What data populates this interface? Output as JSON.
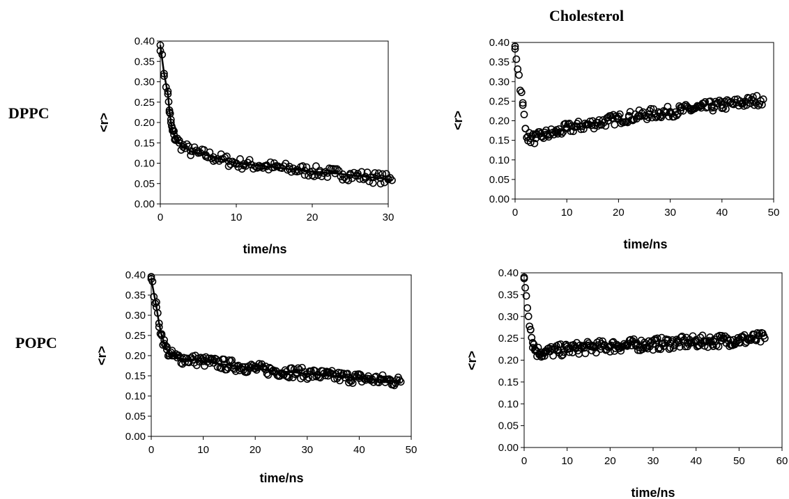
{
  "labels": {
    "column_header": "Cholesterol",
    "row_top": "DPPC",
    "row_bottom": "POPC"
  },
  "chart_data": [
    {
      "type": "scatter",
      "row_label": "DPPC",
      "xlabel": "time/ns",
      "ylabel": "<r>",
      "xlim": [
        0,
        30
      ],
      "ylim": [
        0,
        0.4
      ],
      "xticks": [
        0,
        10,
        20,
        30
      ],
      "yticks": [
        0.0,
        0.05,
        0.1,
        0.15,
        0.2,
        0.25,
        0.3,
        0.35,
        0.4
      ],
      "grid": false,
      "marker": "open-circle",
      "fit_line": true,
      "series": [
        {
          "x": [
            0,
            0.5,
            1.0,
            1.2,
            1.4,
            1.6,
            1.8,
            2.0,
            2.5,
            3,
            4,
            5,
            6,
            7,
            8,
            9,
            10,
            11,
            12,
            13,
            14,
            15,
            16,
            17,
            18,
            19,
            20,
            21,
            22,
            23,
            24,
            25,
            26,
            27,
            28,
            29,
            30,
            30.5
          ],
          "y": [
            0.39,
            0.32,
            0.27,
            0.23,
            0.2,
            0.18,
            0.17,
            0.16,
            0.15,
            0.14,
            0.13,
            0.125,
            0.12,
            0.115,
            0.11,
            0.105,
            0.1,
            0.098,
            0.096,
            0.094,
            0.092,
            0.09,
            0.088,
            0.086,
            0.084,
            0.082,
            0.08,
            0.078,
            0.076,
            0.075,
            0.073,
            0.071,
            0.069,
            0.067,
            0.065,
            0.063,
            0.06,
            0.058
          ]
        }
      ]
    },
    {
      "type": "scatter",
      "column_label": "Cholesterol",
      "row_label": "DPPC",
      "xlabel": "time/ns",
      "ylabel": "<r>",
      "xlim": [
        0,
        50
      ],
      "ylim": [
        0,
        0.4
      ],
      "xticks": [
        0,
        10,
        20,
        30,
        40,
        50
      ],
      "yticks": [
        0.0,
        0.05,
        0.1,
        0.15,
        0.2,
        0.25,
        0.3,
        0.35,
        0.4
      ],
      "grid": false,
      "marker": "open-circle",
      "fit_line": false,
      "series": [
        {
          "x": [
            0,
            1.5,
            2,
            2.5,
            3,
            4,
            5,
            6,
            8,
            10,
            12,
            14,
            16,
            18,
            20,
            22,
            24,
            26,
            28,
            30,
            32,
            34,
            36,
            38,
            40,
            42,
            44,
            46,
            48
          ],
          "y": [
            0.39,
            0.24,
            0.18,
            0.16,
            0.155,
            0.155,
            0.16,
            0.165,
            0.17,
            0.18,
            0.185,
            0.19,
            0.195,
            0.2,
            0.205,
            0.21,
            0.213,
            0.217,
            0.22,
            0.223,
            0.226,
            0.23,
            0.233,
            0.237,
            0.24,
            0.243,
            0.246,
            0.25,
            0.255
          ]
        }
      ]
    },
    {
      "type": "scatter",
      "row_label": "POPC",
      "xlabel": "time/ns",
      "ylabel": "<r>",
      "xlim": [
        0,
        50
      ],
      "ylim": [
        0,
        0.4
      ],
      "xticks": [
        0,
        10,
        20,
        30,
        40,
        50
      ],
      "yticks": [
        0.0,
        0.05,
        0.1,
        0.15,
        0.2,
        0.25,
        0.3,
        0.35,
        0.4
      ],
      "grid": false,
      "marker": "open-circle",
      "fit_line": true,
      "series": [
        {
          "x": [
            0,
            1,
            1.5,
            2,
            2.5,
            3,
            3.5,
            4,
            5,
            6,
            8,
            10,
            12,
            14,
            16,
            18,
            20,
            22,
            24,
            26,
            28,
            30,
            32,
            34,
            36,
            38,
            40,
            42,
            44,
            46,
            48
          ],
          "y": [
            0.39,
            0.32,
            0.28,
            0.25,
            0.23,
            0.215,
            0.205,
            0.2,
            0.195,
            0.192,
            0.19,
            0.186,
            0.182,
            0.178,
            0.175,
            0.172,
            0.168,
            0.165,
            0.162,
            0.16,
            0.158,
            0.155,
            0.153,
            0.15,
            0.148,
            0.146,
            0.144,
            0.142,
            0.14,
            0.138,
            0.135
          ]
        }
      ]
    },
    {
      "type": "scatter",
      "column_label": "Cholesterol",
      "row_label": "POPC",
      "xlabel": "time/ns",
      "ylabel": "<r>",
      "xlim": [
        0,
        60
      ],
      "ylim": [
        0,
        0.4
      ],
      "xticks": [
        0,
        10,
        20,
        30,
        40,
        50,
        60
      ],
      "yticks": [
        0.0,
        0.05,
        0.1,
        0.15,
        0.2,
        0.25,
        0.3,
        0.35,
        0.4
      ],
      "grid": false,
      "marker": "open-circle",
      "fit_line": false,
      "series": [
        {
          "x": [
            0,
            1.5,
            2,
            2.5,
            3,
            4,
            5,
            6,
            8,
            10,
            12,
            14,
            16,
            18,
            20,
            22,
            24,
            26,
            28,
            30,
            32,
            34,
            36,
            38,
            40,
            42,
            44,
            46,
            48,
            50,
            52,
            54,
            56
          ],
          "y": [
            0.39,
            0.27,
            0.24,
            0.225,
            0.22,
            0.218,
            0.218,
            0.22,
            0.222,
            0.225,
            0.227,
            0.228,
            0.23,
            0.231,
            0.232,
            0.233,
            0.234,
            0.235,
            0.236,
            0.237,
            0.238,
            0.239,
            0.24,
            0.241,
            0.242,
            0.243,
            0.244,
            0.245,
            0.246,
            0.247,
            0.248,
            0.249,
            0.25
          ]
        }
      ]
    }
  ]
}
